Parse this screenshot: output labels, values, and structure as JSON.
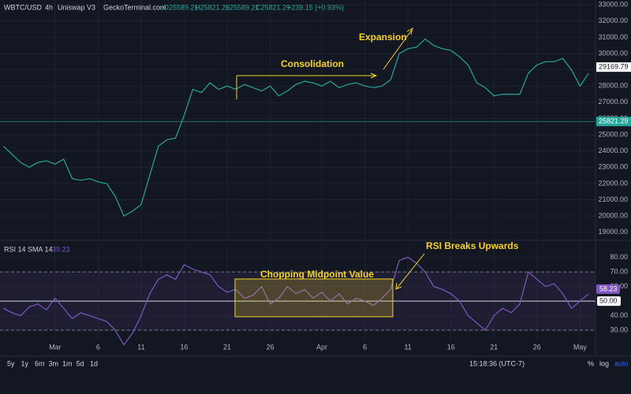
{
  "header": {
    "symbol": "WBTC/USD",
    "interval": "4h",
    "exchange": "Uniswap V3",
    "source": "GeckoTerminal.com",
    "ohlc": [
      "O25589.21",
      "H25821.29",
      "L25589.21",
      "C25821.29"
    ],
    "change": "+239.15 (+0.93%)"
  },
  "chart_data": [
    {
      "type": "line",
      "color": "#26a69a",
      "grid": true,
      "x": [
        0,
        1,
        2,
        3,
        4,
        5,
        6,
        7,
        8,
        9,
        10,
        11,
        12,
        13,
        14,
        15,
        16,
        17,
        18,
        19,
        20,
        21,
        22,
        23,
        24,
        25,
        26,
        27,
        28,
        29,
        30,
        31,
        32,
        33,
        34,
        35,
        36,
        37,
        38,
        39,
        40,
        41,
        42,
        43,
        44,
        45,
        46,
        47,
        48,
        49,
        50,
        51,
        52,
        53,
        54,
        55,
        56,
        57,
        58,
        59,
        60,
        61,
        62,
        63,
        64,
        65,
        66,
        67,
        68
      ],
      "values": [
        24300,
        23800,
        23300,
        23000,
        23300,
        23400,
        23200,
        23500,
        22300,
        22200,
        22300,
        22100,
        22000,
        21200,
        20000,
        20300,
        20700,
        22500,
        24300,
        24700,
        24800,
        26200,
        27800,
        27600,
        28200,
        27800,
        28000,
        27800,
        28100,
        27900,
        27700,
        28000,
        27400,
        27700,
        28100,
        28300,
        28200,
        28000,
        28300,
        27900,
        28100,
        28200,
        28000,
        27900,
        28000,
        28400,
        30000,
        30300,
        30400,
        30900,
        30500,
        30300,
        30200,
        29800,
        29300,
        28200,
        27900,
        27400,
        27500,
        27500,
        27500,
        28800,
        29300,
        29500,
        29500,
        29700,
        29000,
        28000,
        28800
      ],
      "xlim": [
        -0.4,
        68.8
      ],
      "ylim": [
        18600,
        33300
      ],
      "yticks": [
        {
          "value": 19000,
          "label": "19000.00"
        },
        {
          "value": 20000,
          "label": "20000.00"
        },
        {
          "value": 21000,
          "label": "21000.00"
        },
        {
          "value": 22000,
          "label": "22000.00"
        },
        {
          "value": 23000,
          "label": "23000.00"
        },
        {
          "value": 24000,
          "label": "24000.00"
        },
        {
          "value": 25000,
          "label": "25000.00"
        },
        {
          "value": 26000,
          "label": "26000.00"
        },
        {
          "value": 27000,
          "label": "27000.00"
        },
        {
          "value": 28000,
          "label": "28000.00"
        },
        {
          "value": 29000,
          "label": "29000.00"
        },
        {
          "value": 30000,
          "label": "30000.00"
        },
        {
          "value": 31000,
          "label": "31000.00"
        },
        {
          "value": 32000,
          "label": "32000.00"
        },
        {
          "value": 33000,
          "label": "33000.00"
        }
      ],
      "price_tags": [
        29169.79,
        25821.29
      ],
      "annotations": [
        "Consolidation",
        "Expansion"
      ]
    },
    {
      "type": "line",
      "color": "#7e57c2",
      "grid": true,
      "label": "RSI 14 SMA 14",
      "last_value": 39.23,
      "x": [
        0,
        1,
        2,
        3,
        4,
        5,
        6,
        7,
        8,
        9,
        10,
        11,
        12,
        13,
        14,
        15,
        16,
        17,
        18,
        19,
        20,
        21,
        22,
        23,
        24,
        25,
        26,
        27,
        28,
        29,
        30,
        31,
        32,
        33,
        34,
        35,
        36,
        37,
        38,
        39,
        40,
        41,
        42,
        43,
        44,
        45,
        46,
        47,
        48,
        49,
        50,
        51,
        52,
        53,
        54,
        55,
        56,
        57,
        58,
        59,
        60,
        61,
        62,
        63,
        64,
        65,
        66,
        67,
        68
      ],
      "values": [
        45,
        42,
        40,
        46,
        48,
        44,
        52,
        45,
        38,
        42,
        40,
        38,
        36,
        30,
        20,
        28,
        40,
        55,
        65,
        68,
        65,
        75,
        72,
        70,
        68,
        60,
        56,
        58,
        52,
        54,
        60,
        48,
        52,
        60,
        55,
        58,
        52,
        56,
        50,
        55,
        48,
        52,
        50,
        47,
        52,
        58,
        78,
        80,
        76,
        70,
        60,
        58,
        55,
        50,
        40,
        35,
        30,
        40,
        45,
        42,
        48,
        70,
        65,
        60,
        62,
        55,
        45,
        50,
        55
      ],
      "xlim": [
        -0.4,
        68.8
      ],
      "ylim": [
        23,
        89
      ],
      "yticks": [
        {
          "value": 30,
          "label": "30.00"
        },
        {
          "value": 40,
          "label": "40.00"
        },
        {
          "value": 60,
          "label": "60.00"
        },
        {
          "value": 70,
          "label": "70.00"
        },
        {
          "value": 80,
          "label": "80.00"
        }
      ],
      "band": [
        30,
        70
      ],
      "midline": {
        "value": 50,
        "label": "50.00"
      },
      "tag": 58.23,
      "xticks": [
        {
          "value": 6,
          "label": "Mar"
        },
        {
          "value": 11,
          "label": "6"
        },
        {
          "value": 16,
          "label": "11"
        },
        {
          "value": 21,
          "label": "16"
        },
        {
          "value": 26,
          "label": "21"
        },
        {
          "value": 31,
          "label": "26"
        },
        {
          "value": 37,
          "label": "Apr"
        },
        {
          "value": 42,
          "label": "6"
        },
        {
          "value": 47,
          "label": "11"
        },
        {
          "value": 52,
          "label": "16"
        },
        {
          "value": 57,
          "label": "21"
        },
        {
          "value": 62,
          "label": "26"
        },
        {
          "value": 67,
          "label": "May"
        }
      ],
      "annotations": [
        "Chopping Midpoint Value",
        "RSI Breaks Upwards"
      ]
    }
  ],
  "footer": {
    "ranges": [
      "5y",
      "1y",
      "6m",
      "3m",
      "1m",
      "5d",
      "1d"
    ],
    "time": "15:18:36 (UTC-7)",
    "toggles": [
      "%",
      "log",
      "auto"
    ]
  }
}
